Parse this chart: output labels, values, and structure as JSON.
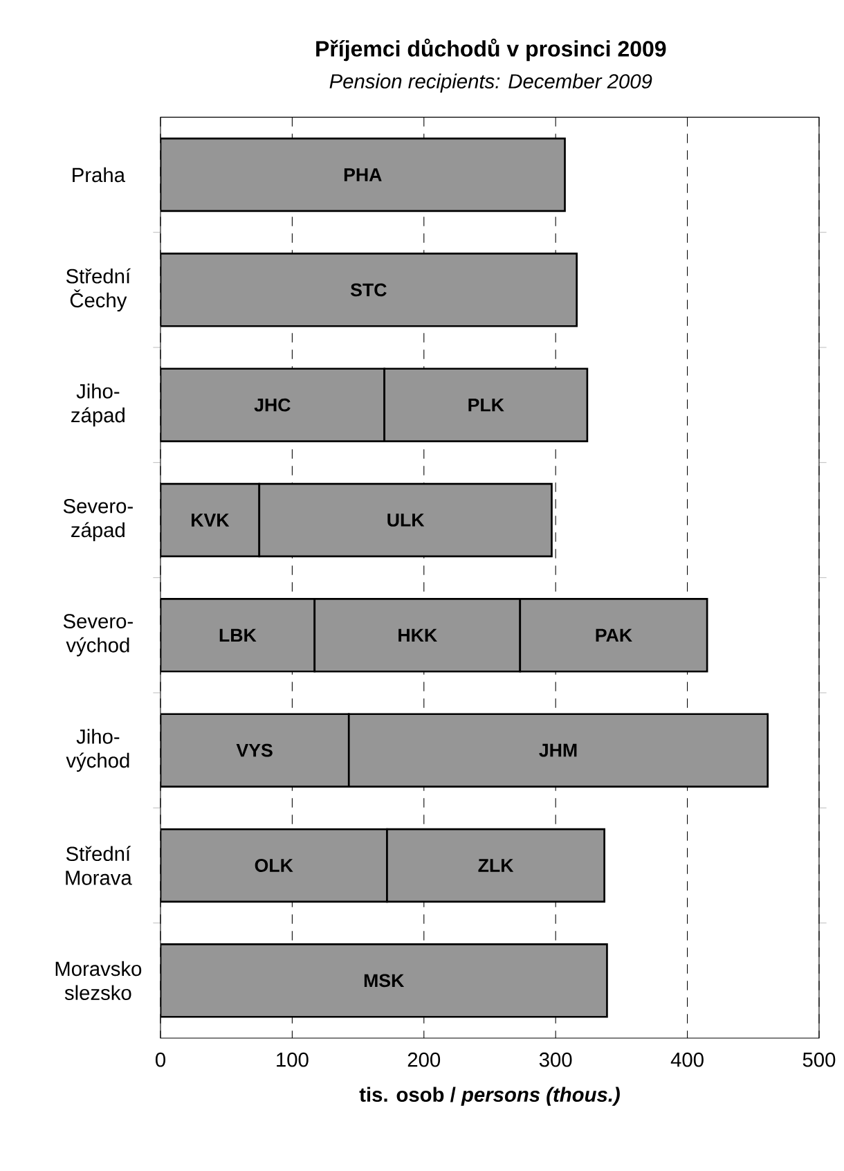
{
  "chart_data": {
    "type": "bar",
    "orientation": "horizontal",
    "stacked": true,
    "title": "Příjemci důchodů v prosinci 2009",
    "subtitle": "Pension recipients: December 2009",
    "xlabel": "tis. osob / *persons (thous.)*",
    "categories": [
      "Praha",
      "Střední Čechy",
      "Jiho-západ",
      "Severo-západ",
      "Severo-východ",
      "Jiho-východ",
      "Střední Morava",
      "Moravsko slezsko"
    ],
    "series": [
      {
        "color": "#969696",
        "values": [
          307,
          316,
          170,
          75,
          117,
          143,
          172,
          339
        ],
        "value_labels": [
          "PHA",
          "STC",
          "JHC",
          "KVK",
          "LBK",
          "VYS",
          "OLK",
          "MSK"
        ]
      },
      {
        "color": "#969696",
        "values": [
          null,
          null,
          154,
          222,
          156,
          318,
          165,
          null
        ],
        "value_labels": [
          null,
          null,
          "PLK",
          "ULK",
          "HKK",
          "JHM",
          "ZLK",
          null
        ]
      },
      {
        "color": "#969696",
        "values": [
          null,
          null,
          null,
          null,
          142,
          null,
          null,
          null
        ],
        "value_labels": [
          null,
          null,
          null,
          null,
          "PAK",
          null,
          null,
          null
        ]
      }
    ],
    "xlim": [
      0,
      500
    ],
    "xticks": [
      0,
      100,
      200,
      300,
      400,
      500
    ],
    "grid": "x"
  }
}
